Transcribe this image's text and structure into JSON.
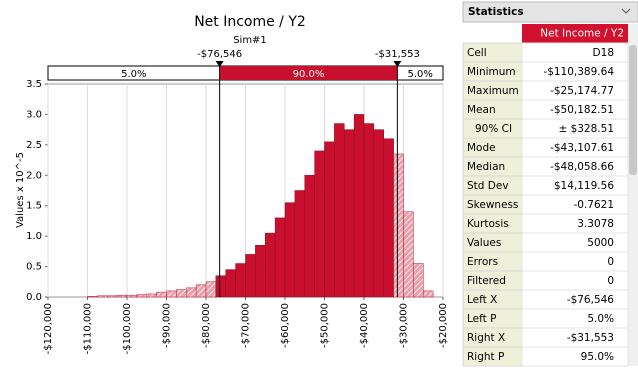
{
  "chart_data": {
    "type": "histogram",
    "title": "Net Income / Y2",
    "subtitle": "Sim#1",
    "y_label": "Values x 10^-5",
    "color": "#c8102e",
    "bins": [
      -110000,
      -107500,
      -105000,
      -102500,
      -100000,
      -97500,
      -95000,
      -92500,
      -90000,
      -87500,
      -85000,
      -82500,
      -80000,
      -77500,
      -75000,
      -72500,
      -70000,
      -67500,
      -65000,
      -62500,
      -60000,
      -57500,
      -55000,
      -52500,
      -50000,
      -47500,
      -45000,
      -42500,
      -40000,
      -37500,
      -35000,
      -32500,
      -30000,
      -27500,
      -25000,
      -22500
    ],
    "values": [
      0.01,
      0.02,
      0.02,
      0.03,
      0.03,
      0.04,
      0.05,
      0.08,
      0.1,
      0.12,
      0.15,
      0.2,
      0.25,
      0.35,
      0.45,
      0.55,
      0.7,
      0.85,
      1.05,
      1.3,
      1.55,
      1.75,
      2.0,
      2.4,
      2.55,
      2.85,
      2.75,
      3.0,
      2.85,
      2.75,
      2.6,
      2.35,
      1.4,
      0.55,
      0.1
    ],
    "xlim": [
      -120000,
      -20000
    ],
    "ylim": [
      0,
      3.5
    ],
    "xticks": [
      {
        "value": -120000,
        "label": "-$120,000"
      },
      {
        "value": -110000,
        "label": "-$110,000"
      },
      {
        "value": -100000,
        "label": "-$100,000"
      },
      {
        "value": -90000,
        "label": "-$90,000"
      },
      {
        "value": -80000,
        "label": "-$80,000"
      },
      {
        "value": -70000,
        "label": "-$70,000"
      },
      {
        "value": -60000,
        "label": "-$60,000"
      },
      {
        "value": -50000,
        "label": "-$50,000"
      },
      {
        "value": -40000,
        "label": "-$40,000"
      },
      {
        "value": -30000,
        "label": "-$30,000"
      },
      {
        "value": -20000,
        "label": "-$20,000"
      }
    ],
    "yticks": [
      {
        "value": 0,
        "label": "0.0"
      },
      {
        "value": 0.5,
        "label": "0.5"
      },
      {
        "value": 1,
        "label": "1.0"
      },
      {
        "value": 1.5,
        "label": "1.5"
      },
      {
        "value": 2,
        "label": "2.0"
      },
      {
        "value": 2.5,
        "label": "2.5"
      },
      {
        "value": 3,
        "label": "3.0"
      },
      {
        "value": 3.5,
        "label": "3.5"
      }
    ],
    "grid": true,
    "delimiters": [
      {
        "value": -76546,
        "label": "-$76,546"
      },
      {
        "value": -31553,
        "label": "-$31,553"
      }
    ],
    "region_labels": [
      "5.0%",
      "90.0%",
      "5.0%"
    ]
  },
  "statistics": {
    "title": "Statistics",
    "column": "Net Income / Y2",
    "rows": [
      [
        "Cell",
        "D18"
      ],
      [
        "Minimum",
        "-$110,389.64"
      ],
      [
        "Maximum",
        "-$25,174.77"
      ],
      [
        "Mean",
        "-$50,182.51"
      ],
      [
        "90% CI",
        "± $328.51"
      ],
      [
        "Mode",
        "-$43,107.61"
      ],
      [
        "Median",
        "-$48,058.66"
      ],
      [
        "Std Dev",
        "$14,119.56"
      ],
      [
        "Skewness",
        "-0.7621"
      ],
      [
        "Kurtosis",
        "3.3078"
      ],
      [
        "Values",
        "5000"
      ],
      [
        "Errors",
        "0"
      ],
      [
        "Filtered",
        "0"
      ],
      [
        "Left X",
        "-$76,546"
      ],
      [
        "Left P",
        "5.0%"
      ],
      [
        "Right X",
        "-$31,553"
      ],
      [
        "Right P",
        "95.0%"
      ]
    ]
  }
}
